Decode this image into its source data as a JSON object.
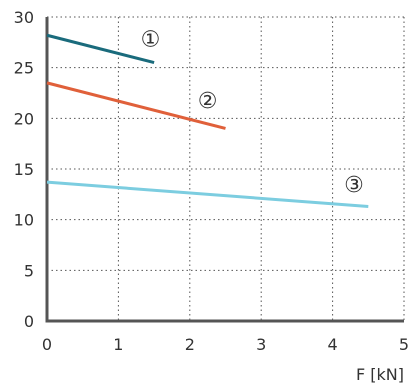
{
  "chart_data": {
    "type": "line",
    "title": "",
    "xlabel": "F [kN]",
    "ylabel": "",
    "xlim": [
      0,
      5
    ],
    "ylim": [
      0,
      30
    ],
    "x_ticks": [
      0,
      1,
      2,
      3,
      4,
      5
    ],
    "y_ticks": [
      0,
      5,
      10,
      15,
      20,
      25,
      30
    ],
    "grid": true,
    "legend": "none",
    "series": [
      {
        "marker_label": "①",
        "color": "#1a6b7c",
        "x": [
          0,
          1.5
        ],
        "y": [
          28.2,
          25.5
        ],
        "marker_at": [
          1.45,
          27.9
        ]
      },
      {
        "marker_label": "②",
        "color": "#e0603a",
        "x": [
          0,
          2.5
        ],
        "y": [
          23.5,
          19.0
        ],
        "marker_at": [
          2.25,
          21.8
        ]
      },
      {
        "marker_label": "③",
        "color": "#7ccde0",
        "x": [
          0,
          4.5
        ],
        "y": [
          13.7,
          11.3
        ],
        "marker_at": [
          4.3,
          13.5
        ]
      }
    ]
  }
}
